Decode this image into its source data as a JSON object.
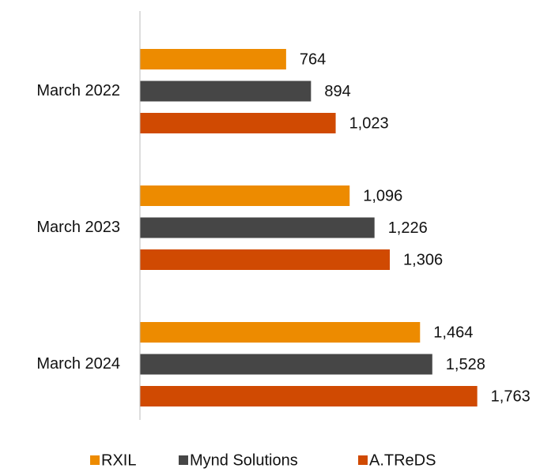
{
  "chart_data": {
    "type": "barh",
    "categories": [
      "March 2022",
      "March 2023",
      "March 2024"
    ],
    "series": [
      {
        "name": "RXIL",
        "color": "#ED8B00",
        "values": [
          764,
          1096,
          1464
        ],
        "value_labels": [
          "764",
          "1,096",
          "1,464"
        ]
      },
      {
        "name": "Mynd Solutions",
        "color": "#464646",
        "values": [
          894,
          1226,
          1528
        ],
        "value_labels": [
          "894",
          "1,226",
          "1,528"
        ]
      },
      {
        "name": "A.TReDS",
        "color": "#D04A02",
        "values": [
          1023,
          1306,
          1763
        ],
        "value_labels": [
          "1,023",
          "1,306",
          "1,763"
        ]
      }
    ],
    "xlim": [
      0,
      2000
    ],
    "legend": "bottom"
  }
}
